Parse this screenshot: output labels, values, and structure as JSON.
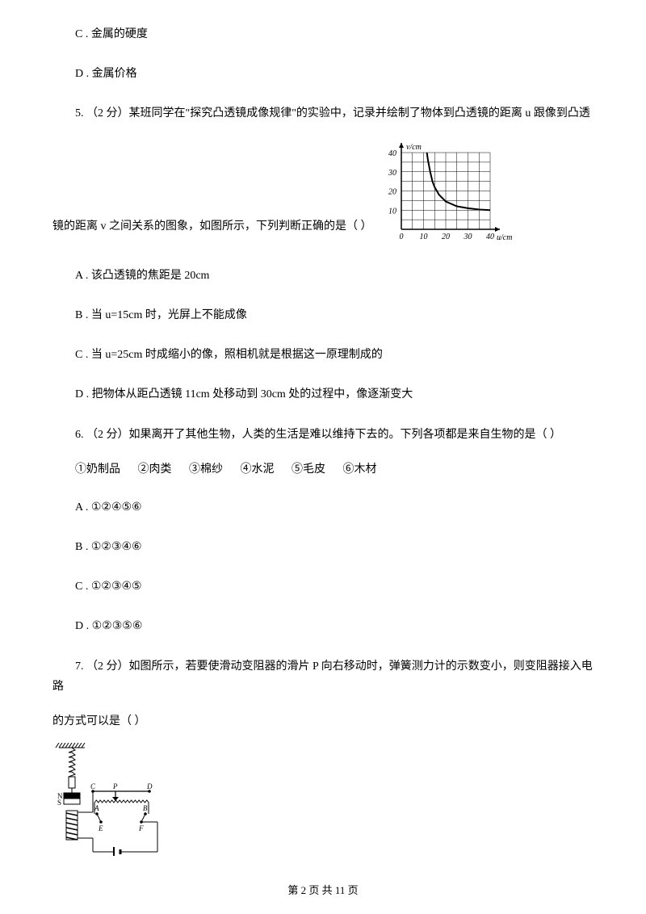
{
  "q4_options": {
    "c": "C .  金属的硬度",
    "d": "D .  金属价格"
  },
  "q5": {
    "stem_part1": "5.   （2 分）某班同学在\"探究凸透镜成像规律\"的实验中，记录并绘制了物体到凸透镜的距离 u 跟像到凸透",
    "stem_part2": "镜的距离 v 之间关系的图象，如图所示，下列判断正确的是（     ）",
    "options": {
      "a": "A .  该凸透镜的焦距是 20cm",
      "b": "B .  当 u=15cm 时，光屏上不能成像",
      "c": "C .  当 u=25cm 时成缩小的像，照相机就是根据这一原理制成的",
      "d": "D .  把物体从距凸透镜 11cm 处移动到 30cm 处的过程中，像逐渐变大"
    },
    "chart": {
      "xlabel": "u/cm",
      "ylabel": "v/cm",
      "xlim": [
        0,
        40
      ],
      "ylim": [
        0,
        40
      ],
      "xticks": [
        0,
        10,
        20,
        30,
        40
      ],
      "yticks": [
        10,
        20,
        30,
        40
      ],
      "curve": [
        [
          11.5,
          40
        ],
        [
          12,
          36
        ],
        [
          13,
          30
        ],
        [
          14,
          25
        ],
        [
          15,
          22
        ],
        [
          17,
          18
        ],
        [
          20,
          14.5
        ],
        [
          25,
          12
        ],
        [
          30,
          11
        ],
        [
          35,
          10.3
        ],
        [
          40,
          10
        ]
      ],
      "grid_color": "#000000",
      "line_color": "#000000",
      "bg": "#ffffff",
      "label_fontsize": 10
    }
  },
  "q6": {
    "stem": "6.   （2 分）如果离开了其他生物，人类的生活是难以维持下去的。下列各项都是来自生物的是（     ）",
    "items": [
      "①奶制品",
      "②肉类",
      "③棉纱",
      "④水泥",
      "⑤毛皮",
      "⑥木材"
    ],
    "options": {
      "a": "A .  ①②④⑤⑥",
      "b": "B .  ①②③④⑥",
      "c": "C .  ①②③④⑤",
      "d": "D .  ①②③⑤⑥"
    }
  },
  "q7": {
    "stem_part1": "7.   （2 分）如图所示，若要使滑动变阻器的滑片 P 向右移动时，弹簧测力计的示数变小，则变阻器接入电路",
    "stem_part2": "的方式可以是（     ）",
    "circuit": {
      "labels": {
        "N": "N",
        "S": "S",
        "C": "C",
        "P": "P",
        "D": "D",
        "A": "A",
        "B": "B",
        "E": "E",
        "F": "F"
      },
      "line_color": "#000000"
    }
  },
  "footer": "第  2  页  共  11  页"
}
